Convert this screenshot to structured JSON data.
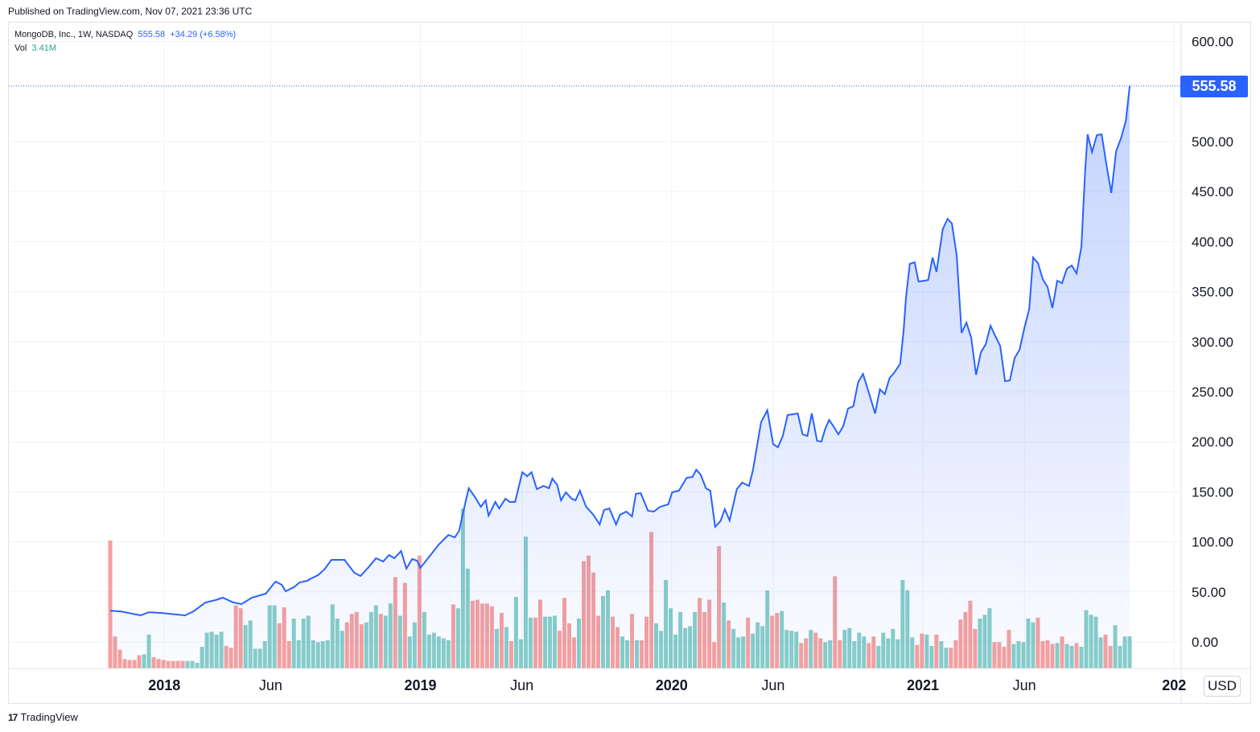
{
  "published": "Published on TradingView.com, Nov 07, 2021 23:36 UTC",
  "legend": {
    "symbol": "MongoDB, Inc., 1W, NASDAQ",
    "price": "555.58",
    "change": "+34.29 (+6.58%)",
    "vol_label": "Vol",
    "vol_value": "3.41M"
  },
  "currency": "USD",
  "last_price_label": "555.58",
  "footer": {
    "logo": "17",
    "brand": "TradingView"
  },
  "colors": {
    "line": "#2962ff",
    "up": "#26a69a",
    "down": "#ef5350",
    "grid": "#f0f3fa"
  },
  "chart_data": {
    "type": "area",
    "title": "MongoDB, Inc., 1W, NASDAQ",
    "x_unit": "weeks since first bar (week of 2017-10-20)",
    "ylabel": "USD",
    "ylim": [
      -27,
      600
    ],
    "y_ticks": [
      "600.00",
      "500.00",
      "450.00",
      "400.00",
      "350.00",
      "300.00",
      "250.00",
      "200.00",
      "150.00",
      "100.00",
      "50.00",
      "0.00"
    ],
    "y_tick_values": [
      600,
      500,
      450,
      400,
      350,
      300,
      250,
      200,
      150,
      100,
      50,
      0
    ],
    "x_ticks": [
      {
        "label": "2018",
        "week": 11.2,
        "bold": true
      },
      {
        "label": "Jun",
        "week": 33.2
      },
      {
        "label": "2019",
        "week": 64.2,
        "bold": true
      },
      {
        "label": "Jun",
        "week": 85.2
      },
      {
        "label": "2020",
        "week": 116.2,
        "bold": true
      },
      {
        "label": "Jun",
        "week": 137.2
      },
      {
        "label": "2021",
        "week": 168.2,
        "bold": true
      },
      {
        "label": "Jun",
        "week": 189.2
      },
      {
        "label": "202",
        "week": 220.2,
        "bold": true
      }
    ],
    "price_series": [
      [
        0,
        31.3
      ],
      [
        2.2,
        30.5
      ],
      [
        6.3,
        26.5
      ],
      [
        8,
        29.7
      ],
      [
        10.5,
        28.9
      ],
      [
        15.5,
        26.5
      ],
      [
        17.2,
        30.5
      ],
      [
        19.7,
        39.4
      ],
      [
        21.8,
        41.8
      ],
      [
        23.3,
        44.2
      ],
      [
        25.5,
        39.4
      ],
      [
        27.2,
        37.8
      ],
      [
        29.3,
        44.2
      ],
      [
        32.2,
        48.2
      ],
      [
        34.2,
        60.3
      ],
      [
        35.5,
        57.1
      ],
      [
        36.3,
        50.6
      ],
      [
        38,
        54.7
      ],
      [
        39.2,
        59.5
      ],
      [
        40.8,
        61.1
      ],
      [
        41.3,
        62.7
      ],
      [
        43,
        66.7
      ],
      [
        44.3,
        72.3
      ],
      [
        45.8,
        82
      ],
      [
        48.5,
        82
      ],
      [
        50.5,
        69.1
      ],
      [
        51.8,
        65.9
      ],
      [
        53.5,
        74.8
      ],
      [
        55,
        83.6
      ],
      [
        56.5,
        80.4
      ],
      [
        57.7,
        86.8
      ],
      [
        58.8,
        83.6
      ],
      [
        60.2,
        90.8
      ],
      [
        61.3,
        73.2
      ],
      [
        62.5,
        82.8
      ],
      [
        63.5,
        81.2
      ],
      [
        64.2,
        74
      ],
      [
        66.3,
        86.8
      ],
      [
        68,
        97.3
      ],
      [
        70,
        106.9
      ],
      [
        71.3,
        104.5
      ],
      [
        72.2,
        110.9
      ],
      [
        73.3,
        135
      ],
      [
        74.2,
        153.5
      ],
      [
        75.5,
        144.7
      ],
      [
        76.7,
        135
      ],
      [
        77.7,
        141.5
      ],
      [
        78.3,
        126.2
      ],
      [
        79.7,
        139.9
      ],
      [
        80.5,
        133.4
      ],
      [
        81.8,
        143.1
      ],
      [
        82.7,
        139.9
      ],
      [
        83.8,
        139.9
      ],
      [
        85.3,
        169.6
      ],
      [
        86.3,
        165.6
      ],
      [
        87.2,
        169.6
      ],
      [
        88.3,
        152.7
      ],
      [
        89.7,
        155.9
      ],
      [
        90.8,
        153.5
      ],
      [
        91.5,
        163.2
      ],
      [
        92.5,
        156.8
      ],
      [
        93.3,
        141.5
      ],
      [
        94.3,
        149.5
      ],
      [
        95.5,
        143.1
      ],
      [
        96.3,
        141.5
      ],
      [
        97.2,
        151.1
      ],
      [
        98.5,
        135
      ],
      [
        100,
        127
      ],
      [
        101.3,
        117.4
      ],
      [
        102.2,
        131.8
      ],
      [
        103.3,
        133.4
      ],
      [
        104.7,
        117.4
      ],
      [
        105.5,
        127
      ],
      [
        106.8,
        130.2
      ],
      [
        108,
        125.4
      ],
      [
        108.8,
        147.9
      ],
      [
        109.8,
        148.7
      ],
      [
        111.3,
        131
      ],
      [
        112.5,
        130.2
      ],
      [
        113.8,
        135
      ],
      [
        115.5,
        137.5
      ],
      [
        116.3,
        149.5
      ],
      [
        117.7,
        151.1
      ],
      [
        119.3,
        164
      ],
      [
        120.5,
        164.8
      ],
      [
        121.3,
        172
      ],
      [
        122.2,
        167.2
      ],
      [
        123.3,
        153.5
      ],
      [
        124.2,
        151.1
      ],
      [
        125.2,
        115
      ],
      [
        126.3,
        120.6
      ],
      [
        127.2,
        132.6
      ],
      [
        128.2,
        121.4
      ],
      [
        129.7,
        152.7
      ],
      [
        130.8,
        159.2
      ],
      [
        132.2,
        155.9
      ],
      [
        133,
        171.2
      ],
      [
        134.7,
        219.5
      ],
      [
        136,
        231.5
      ],
      [
        137.2,
        197.7
      ],
      [
        138.2,
        194.5
      ],
      [
        139.2,
        205.8
      ],
      [
        140.2,
        226.7
      ],
      [
        141.3,
        227.5
      ],
      [
        142.3,
        228.3
      ],
      [
        143.3,
        207.4
      ],
      [
        144.3,
        205.8
      ],
      [
        145.2,
        228.3
      ],
      [
        146.3,
        201
      ],
      [
        147.2,
        200.2
      ],
      [
        148,
        213
      ],
      [
        148.8,
        221.9
      ],
      [
        149.7,
        215.4
      ],
      [
        150.7,
        207.4
      ],
      [
        151.7,
        215.4
      ],
      [
        152.7,
        233.1
      ],
      [
        153.8,
        235.5
      ],
      [
        154.8,
        259.6
      ],
      [
        155.8,
        267.7
      ],
      [
        157.2,
        246
      ],
      [
        158.3,
        228.3
      ],
      [
        159.3,
        252.4
      ],
      [
        160.3,
        247.6
      ],
      [
        161.3,
        263.7
      ],
      [
        162.3,
        269.3
      ],
      [
        163.5,
        278.1
      ],
      [
        164.2,
        310.3
      ],
      [
        164.7,
        344.1
      ],
      [
        165.5,
        377.8
      ],
      [
        166.5,
        379.4
      ],
      [
        167.3,
        360.1
      ],
      [
        168.5,
        360.9
      ],
      [
        169.3,
        361.7
      ],
      [
        170.2,
        384.2
      ],
      [
        171,
        369.8
      ],
      [
        172.3,
        412.4
      ],
      [
        173.3,
        422.8
      ],
      [
        174.2,
        418
      ],
      [
        175.2,
        385.9
      ],
      [
        176.2,
        308.7
      ],
      [
        177.2,
        319.1
      ],
      [
        178.2,
        303.9
      ],
      [
        179.2,
        266.9
      ],
      [
        180.2,
        289.4
      ],
      [
        181.2,
        297.4
      ],
      [
        182.2,
        315.9
      ],
      [
        183.2,
        305.5
      ],
      [
        184.2,
        295.8
      ],
      [
        185.2,
        260.5
      ],
      [
        186.2,
        261.3
      ],
      [
        187.2,
        283.8
      ],
      [
        188.2,
        291.8
      ],
      [
        189.2,
        313.5
      ],
      [
        190.2,
        332.8
      ],
      [
        191,
        384.2
      ],
      [
        192,
        378.6
      ],
      [
        193,
        362.5
      ],
      [
        194,
        354.5
      ],
      [
        195,
        333.6
      ],
      [
        196,
        360.9
      ],
      [
        197,
        358.5
      ],
      [
        198,
        373
      ],
      [
        199,
        376.2
      ],
      [
        200,
        368.2
      ],
      [
        201,
        394.7
      ],
      [
        201.8,
        472.7
      ],
      [
        202.3,
        507.2
      ],
      [
        203.2,
        489.5
      ],
      [
        204.2,
        506.4
      ],
      [
        205.2,
        507.2
      ],
      [
        206.2,
        476.7
      ],
      [
        207.2,
        448.6
      ],
      [
        208.2,
        490.4
      ],
      [
        209.2,
        503.2
      ],
      [
        210.2,
        520.9
      ],
      [
        211,
        555.58
      ]
    ],
    "volume_millions": [
      13.6,
      3.4,
      2,
      1,
      0.9,
      0.9,
      1.4,
      1.5,
      3.6,
      1.2,
      1,
      0.9,
      0.8,
      0.8,
      0.8,
      0.8,
      0.8,
      0.8,
      0.6,
      2.3,
      3.8,
      3.9,
      3.6,
      3.9,
      2.4,
      2.2,
      6.7,
      6.4,
      4.6,
      5.1,
      2.1,
      2.1,
      2.9,
      6.7,
      6.7,
      4.8,
      6.5,
      2.9,
      5.3,
      3.0,
      5.3,
      5.6,
      3.0,
      2.8,
      2.9,
      3.0,
      6.8,
      5.3,
      4.0,
      4.9,
      5.8,
      6.0,
      4.7,
      4.9,
      6.0,
      6.7,
      5.8,
      5.6,
      6.9,
      9.7,
      5.6,
      9.1,
      3.4,
      4.9,
      12,
      6.0,
      3.6,
      3.8,
      3.4,
      3.2,
      3.0,
      6.8,
      6.4,
      17,
      10.6,
      7.2,
      7.3,
      6.9,
      6.9,
      6.6,
      4.2,
      5.9,
      4.4,
      2.9,
      7.6,
      3.1,
      14,
      5.4,
      5.4,
      7.3,
      5.5,
      5.5,
      5.6,
      4.0,
      7.5,
      4.8,
      3.3,
      5.3,
      11.4,
      12,
      10.2,
      5.6,
      7.7,
      8.3,
      5.5,
      4.4,
      3.4,
      3.0,
      5.8,
      3.0,
      3.0,
      5.5,
      14.5,
      4.8,
      4.0,
      9.4,
      6.4,
      3.6,
      6.0,
      4.3,
      4.5,
      6.0,
      7.5,
      6.0,
      7.3,
      2.8,
      13,
      7.0,
      5.1,
      4.2,
      3.3,
      3.4,
      5.4,
      3.7,
      4.9,
      4.5,
      8.3,
      5.6,
      5.9,
      6.1,
      4.1,
      4.0,
      3.9,
      2.7,
      3.2,
      4.1,
      3.8,
      3.2,
      2.8,
      3.0,
      9.8,
      3.0,
      4.1,
      4.3,
      2.9,
      3.8,
      3.4,
      2.7,
      3.4,
      2.4,
      3.8,
      3.2,
      4.2,
      3.1,
      9.4,
      8.3,
      3.3,
      2.5,
      3.7,
      3.6,
      2.4,
      3.6,
      2.9,
      2.2,
      2.2,
      3.0,
      5.2,
      6.0,
      7.2,
      4.2,
      5.3,
      5.7,
      6.4,
      2.8,
      2.8,
      2.3,
      4.1,
      2.6,
      2.9,
      2.8,
      5.3,
      4.9,
      5.4,
      2.9,
      3.0,
      2.6,
      2.7,
      3.4,
      2.6,
      2.4,
      2.7,
      2.3,
      6.2,
      5.7,
      5.5,
      3.3,
      3.6,
      2.4,
      4.6,
      2.4,
      3.4,
      3.41
    ],
    "last_price": 555.58,
    "grid": true,
    "legend_position": "top-left"
  }
}
